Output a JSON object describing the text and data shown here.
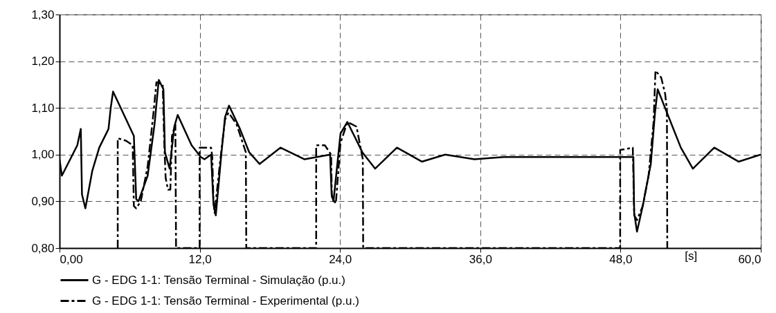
{
  "chart_data": {
    "type": "line",
    "xlim": [
      0,
      60
    ],
    "ylim": [
      0.8,
      1.3
    ],
    "xticks": [
      {
        "value": 0,
        "label": "0,00"
      },
      {
        "value": 12,
        "label": "12,0"
      },
      {
        "value": 24,
        "label": "24,0"
      },
      {
        "value": 36,
        "label": "36,0"
      },
      {
        "value": 48,
        "label": "48,0"
      },
      {
        "value": 60,
        "label": "60,0"
      }
    ],
    "yticks": [
      {
        "value": 0.8,
        "label": "0,80"
      },
      {
        "value": 0.9,
        "label": "0,90"
      },
      {
        "value": 1.0,
        "label": "1,00"
      },
      {
        "value": 1.1,
        "label": "1,10"
      },
      {
        "value": 1.2,
        "label": "1,20"
      },
      {
        "value": 1.3,
        "label": "1,30"
      }
    ],
    "xlabel": "[s]",
    "grid": true,
    "legend": "bottom",
    "series": [
      {
        "name": "G - EDG 1-1: Tensão Terminal - Simulação (p.u.)",
        "color": "#000000",
        "line_style": "solid",
        "x": [
          0,
          0.2,
          1.52,
          1.82,
          1.92,
          2.21,
          2.8,
          3.4,
          4.19,
          4.38,
          4.58,
          6.36,
          6.56,
          6.75,
          7.54,
          8.13,
          8.49,
          8.89,
          9.02,
          9.42,
          9.82,
          10.11,
          11.3,
          12.09,
          12.4,
          12.97,
          13.17,
          13.37,
          13.86,
          14.16,
          14.5,
          15.44,
          16.23,
          17.12,
          18.9,
          20.97,
          23.15,
          23.28,
          23.44,
          24.04,
          24.63,
          25.91,
          27.0,
          28.87,
          31.0,
          33.0,
          35.5,
          38.0,
          44.67,
          49.1,
          49.17,
          49.41,
          49.9,
          50.59,
          50.95,
          51.18,
          51.97,
          53.16,
          54.19,
          56.02,
          58.1,
          60
        ],
        "values": [
          0.99,
          0.955,
          1.02,
          1.055,
          0.915,
          0.885,
          0.965,
          1.015,
          1.055,
          1.1,
          1.135,
          1.04,
          0.905,
          0.9,
          0.955,
          1.065,
          1.16,
          1.14,
          1.005,
          0.97,
          1.06,
          1.085,
          1.02,
          0.995,
          0.99,
          1.0,
          0.895,
          0.87,
          1.005,
          1.08,
          1.105,
          1.055,
          1.005,
          0.98,
          1.015,
          0.99,
          1.0,
          0.915,
          0.9,
          1.045,
          1.07,
          1.005,
          0.97,
          1.015,
          0.985,
          1.0,
          0.99,
          0.995,
          0.995,
          0.995,
          0.875,
          0.835,
          0.89,
          0.98,
          1.09,
          1.14,
          1.09,
          1.015,
          0.97,
          1.015,
          0.985,
          1.0
        ]
      },
      {
        "name": "G - EDG 1-1: Tensão Terminal - Experimental (p.u.)",
        "color": "#000000",
        "line_style": "dashed",
        "x": [
          4.98,
          4.98,
          5.67,
          6.26,
          6.36,
          6.56,
          6.95,
          7.54,
          8.04,
          8.29,
          8.83,
          8.96,
          9.08,
          9.28,
          9.48,
          9.62,
          9.91,
          9.97,
          11.99,
          11.99,
          12.97,
          13.07,
          13.17,
          13.27,
          13.76,
          14.16,
          14.46,
          15.15,
          15.94,
          15.98,
          21.96,
          21.96,
          22.7,
          23.24,
          23.3,
          23.64,
          24.04,
          24.63,
          25.41,
          25.95,
          25.98,
          47.97,
          47.97,
          49.05,
          49.17,
          49.41,
          49.9,
          50.4,
          50.83,
          50.99,
          51.48,
          51.82,
          51.97,
          52.0
        ],
        "values": [
          0.8,
          1.035,
          1.03,
          1.02,
          0.89,
          0.885,
          0.9,
          0.975,
          1.09,
          1.155,
          1.15,
          1.025,
          0.95,
          0.925,
          0.925,
          1.04,
          1.065,
          0.8,
          0.8,
          1.015,
          1.015,
          0.995,
          0.9,
          0.875,
          0.99,
          1.075,
          1.09,
          1.065,
          1.005,
          0.8,
          0.8,
          1.02,
          1.02,
          1.0,
          0.91,
          0.895,
          1.025,
          1.07,
          1.06,
          0.99,
          0.8,
          0.8,
          1.01,
          1.015,
          0.87,
          0.86,
          0.89,
          0.955,
          1.07,
          1.18,
          1.165,
          1.13,
          1.095,
          0.8
        ]
      }
    ]
  }
}
